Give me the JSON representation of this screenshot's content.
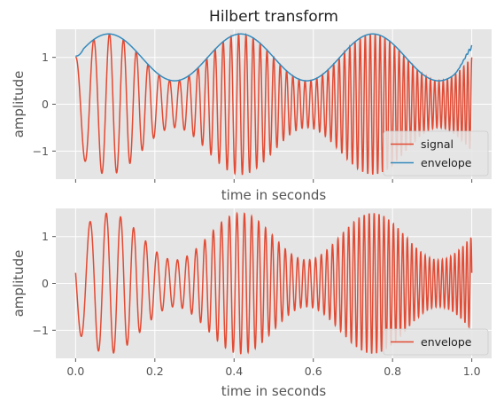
{
  "chart_data": [
    {
      "type": "line",
      "title": "Hilbert transform",
      "xlabel": "time in seconds",
      "ylabel": "amplitude",
      "xlim": [
        -0.05,
        1.05
      ],
      "ylim": [
        -1.6,
        1.6
      ],
      "xticks": [
        0.0,
        0.2,
        0.4,
        0.6,
        0.8,
        1.0
      ],
      "yticks": [
        -1,
        0,
        1
      ],
      "ytick_labels": [
        "−1",
        "0",
        "1"
      ],
      "show_xtick_labels": false,
      "grid": true,
      "legend": "lower-right",
      "series": [
        {
          "name": "signal",
          "color": "#E24A33",
          "kind": "chirp-am",
          "modulation": {
            "base": 1.0,
            "depth": 0.5,
            "freq_hz": 3.0
          },
          "chirp": {
            "f0_hz": 20.0,
            "f1_hz": 100.0
          },
          "t": [
            0.0,
            1.0
          ]
        },
        {
          "name": "envelope",
          "color": "#348ABD",
          "kind": "envelope",
          "modulation": {
            "base": 1.0,
            "depth": 0.5,
            "freq_hz": 3.0
          },
          "edge_values": {
            "start": 1.03,
            "end": 1.22
          },
          "t": [
            0.0,
            1.0
          ]
        }
      ]
    },
    {
      "type": "line",
      "title": "",
      "xlabel": "time in seconds",
      "ylabel": "amplitude",
      "xlim": [
        -0.05,
        1.05
      ],
      "ylim": [
        -1.6,
        1.6
      ],
      "xticks": [
        0.0,
        0.2,
        0.4,
        0.6,
        0.8,
        1.0
      ],
      "xtick_labels": [
        "0.0",
        "0.2",
        "0.4",
        "0.6",
        "0.8",
        "1.0"
      ],
      "yticks": [
        -1,
        0,
        1
      ],
      "ytick_labels": [
        "−1",
        "0",
        "1"
      ],
      "show_xtick_labels": true,
      "grid": true,
      "legend": "lower-right",
      "series": [
        {
          "name": "envelope",
          "color": "#E24A33",
          "kind": "instantaneous",
          "modulation": {
            "base": 1.0,
            "depth": 0.5,
            "freq_hz": 3.0
          },
          "chirp": {
            "f0_hz": 20.0,
            "f1_hz": 100.0
          },
          "phase_offset_deg": 77,
          "t": [
            0.0,
            1.0
          ]
        }
      ]
    }
  ]
}
